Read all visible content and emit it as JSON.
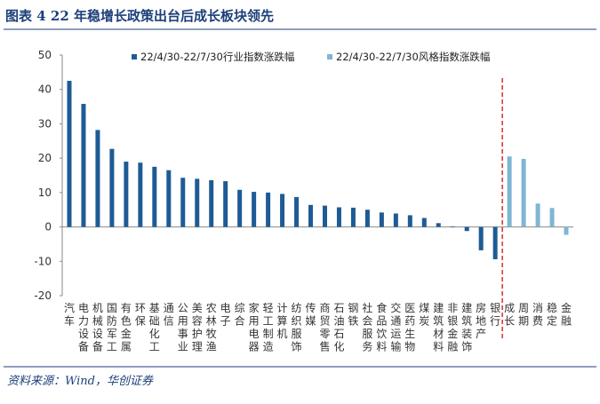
{
  "figure": {
    "title": "图表 4   22 年稳增长政策出台后成长板块领先",
    "source": "资料来源：Wind，华创证券"
  },
  "colors": {
    "industry": "#1e5b95",
    "style": "#7fb6d3",
    "divider": "#e3282b",
    "title": "#1c3f7a",
    "rule": "#1c3f7a"
  },
  "chart_data": {
    "type": "bar",
    "title": "",
    "xlabel": "",
    "ylabel": "",
    "ylim": [
      -20,
      50
    ],
    "yticks": [
      50,
      40,
      30,
      20,
      10,
      0,
      -10,
      -20
    ],
    "legend_position": "top",
    "categories": [
      "汽车",
      "电力设备",
      "机械设备",
      "国防军工",
      "有色金属",
      "环保",
      "基础化工",
      "通信",
      "公用事业",
      "美容护理",
      "农林牧渔",
      "电子",
      "综合",
      "家用电器",
      "轻工制造",
      "计算机",
      "纺织服饰",
      "传媒",
      "商贸零售",
      "石油石化",
      "钢铁",
      "社会服务",
      "食品饮料",
      "交通运输",
      "医药生物",
      "煤炭",
      "建筑材料",
      "非银金融",
      "建筑装饰",
      "房地产",
      "银行",
      "成长",
      "周期",
      "消费",
      "稳定",
      "金融"
    ],
    "series": [
      {
        "name": "22/4/30-22/7/30行业指数涨跌幅",
        "values": [
          42.5,
          35.8,
          28.2,
          22.7,
          19.0,
          18.7,
          17.5,
          16.5,
          14.3,
          14.0,
          13.6,
          13.3,
          10.8,
          10.2,
          10.0,
          9.6,
          8.7,
          6.4,
          6.2,
          5.7,
          5.6,
          5.0,
          4.2,
          3.9,
          3.4,
          2.6,
          1.1,
          0.1,
          -1.2,
          -6.8,
          -9.4,
          null,
          null,
          null,
          null,
          null
        ]
      },
      {
        "name": "22/4/30-22/7/30风格指数涨跌幅",
        "values": [
          null,
          null,
          null,
          null,
          null,
          null,
          null,
          null,
          null,
          null,
          null,
          null,
          null,
          null,
          null,
          null,
          null,
          null,
          null,
          null,
          null,
          null,
          null,
          null,
          null,
          null,
          null,
          null,
          null,
          null,
          null,
          20.5,
          19.8,
          6.8,
          5.5,
          -2.3
        ]
      }
    ]
  }
}
